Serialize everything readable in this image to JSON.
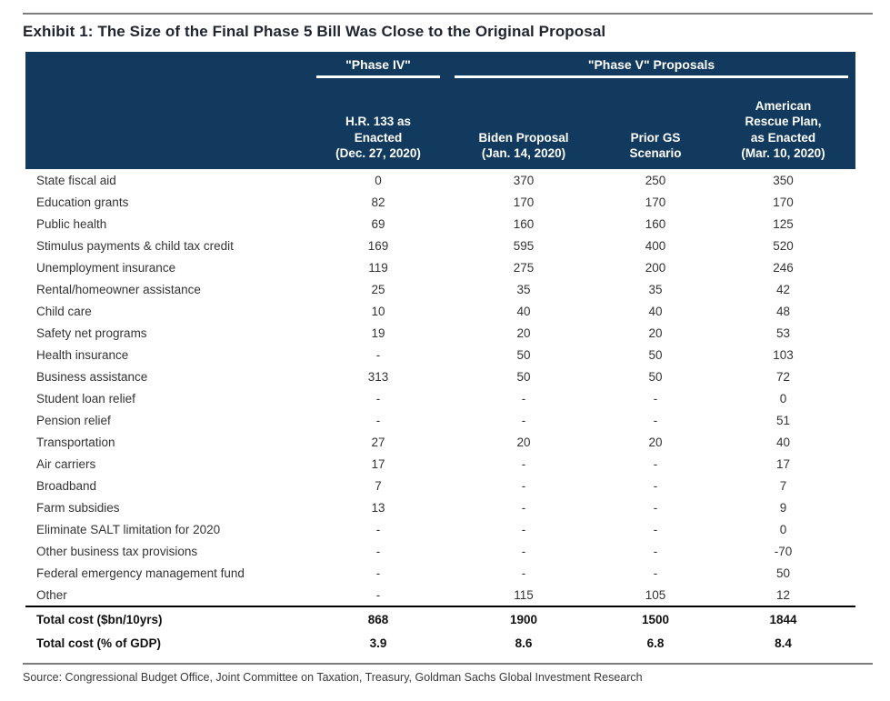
{
  "page": {
    "exhibit_title": "Exhibit 1: The Size of the Final Phase 5 Bill Was Close to the Original Proposal",
    "source_note": "Source: Congressional Budget Office, Joint Committee on Taxation, Treasury, Goldman Sachs Global Investment Research"
  },
  "colors": {
    "header_bg": "#123a5f",
    "header_text": "#ffffff",
    "title_text": "#1f2430",
    "body_text": "#333333",
    "rule_gray": "#7d7d7d",
    "total_separator": "#000000"
  },
  "table": {
    "group_headers": [
      {
        "label": "\"Phase IV\"",
        "span": 1
      },
      {
        "label": "\"Phase V\" Proposals",
        "span": 3
      }
    ],
    "columns": [
      "H.R. 133 as\nEnacted\n(Dec. 27, 2020)",
      "Biden Proposal\n(Jan. 14, 2020)",
      "Prior GS\nScenario",
      "American\nRescue Plan,\nas Enacted\n(Mar. 10, 2020)"
    ],
    "rows": [
      {
        "label": "State fiscal aid",
        "values": [
          "0",
          "370",
          "250",
          "350"
        ]
      },
      {
        "label": "Education grants",
        "values": [
          "82",
          "170",
          "170",
          "170"
        ]
      },
      {
        "label": "Public health",
        "values": [
          "69",
          "160",
          "160",
          "125"
        ]
      },
      {
        "label": "Stimulus payments & child tax credit",
        "values": [
          "169",
          "595",
          "400",
          "520"
        ]
      },
      {
        "label": "Unemployment insurance",
        "values": [
          "119",
          "275",
          "200",
          "246"
        ]
      },
      {
        "label": "Rental/homeowner assistance",
        "values": [
          "25",
          "35",
          "35",
          "42"
        ]
      },
      {
        "label": "Child care",
        "values": [
          "10",
          "40",
          "40",
          "48"
        ]
      },
      {
        "label": "Safety net programs",
        "values": [
          "19",
          "20",
          "20",
          "53"
        ]
      },
      {
        "label": "Health insurance",
        "values": [
          "-",
          "50",
          "50",
          "103"
        ]
      },
      {
        "label": "Business assistance",
        "values": [
          "313",
          "50",
          "50",
          "72"
        ]
      },
      {
        "label": "Student loan relief",
        "values": [
          "-",
          "-",
          "-",
          "0"
        ]
      },
      {
        "label": "Pension relief",
        "values": [
          "-",
          "-",
          "-",
          "51"
        ]
      },
      {
        "label": "Transportation",
        "values": [
          "27",
          "20",
          "20",
          "40"
        ]
      },
      {
        "label": "Air carriers",
        "values": [
          "17",
          "-",
          "-",
          "17"
        ]
      },
      {
        "label": "Broadband",
        "values": [
          "7",
          "-",
          "-",
          "7"
        ]
      },
      {
        "label": "Farm subsidies",
        "values": [
          "13",
          "-",
          "-",
          "9"
        ]
      },
      {
        "label": "Eliminate SALT limitation for 2020",
        "values": [
          "-",
          "-",
          "-",
          "0"
        ]
      },
      {
        "label": "Other business tax provisions",
        "values": [
          "-",
          "-",
          "-",
          "-70"
        ]
      },
      {
        "label": "Federal emergency management fund",
        "values": [
          "-",
          "-",
          "-",
          "50"
        ]
      },
      {
        "label": "Other",
        "values": [
          "-",
          "115",
          "105",
          "12"
        ]
      }
    ],
    "total_rows": [
      {
        "label": "Total cost ($bn/10yrs)",
        "values": [
          "868",
          "1900",
          "1500",
          "1844"
        ]
      },
      {
        "label": "Total cost (% of GDP)",
        "values": [
          "3.9",
          "8.6",
          "6.8",
          "8.4"
        ]
      }
    ]
  }
}
